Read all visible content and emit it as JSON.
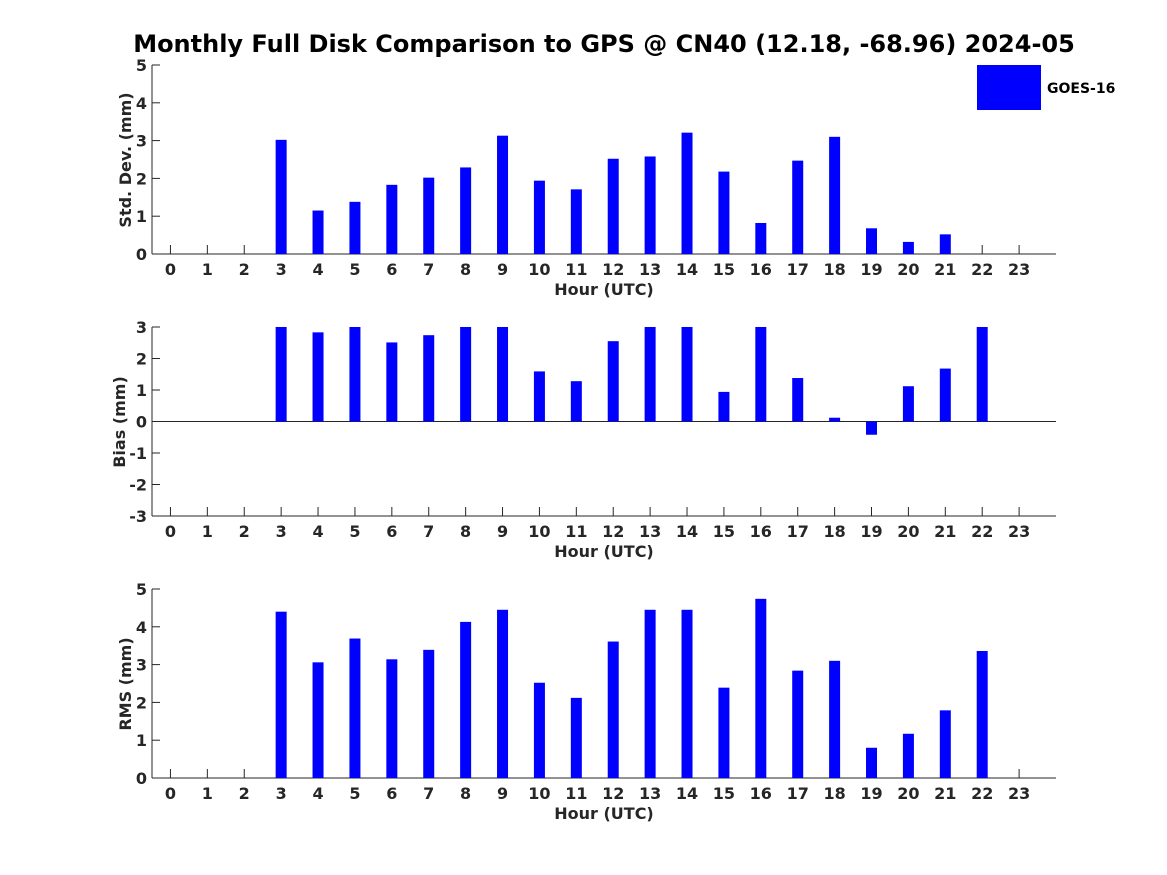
{
  "title": "Monthly Full Disk Comparison to GPS @ CN40 (12.18, -68.96) 2024-05",
  "colors": {
    "bar": "#0000ff",
    "axis": "#262626"
  },
  "legend": {
    "label": "GOES-16",
    "position": "top-right"
  },
  "chart_data": [
    {
      "type": "bar",
      "xlabel": "Hour (UTC)",
      "ylabel": "Std. Dev. (mm)",
      "ylim": [
        0,
        5
      ],
      "yticks": [
        0,
        1,
        2,
        3,
        4,
        5
      ],
      "categories": [
        "0",
        "1",
        "2",
        "3",
        "4",
        "5",
        "6",
        "7",
        "8",
        "9",
        "10",
        "11",
        "12",
        "13",
        "14",
        "15",
        "16",
        "17",
        "18",
        "19",
        "20",
        "21",
        "22",
        "23"
      ],
      "series": [
        {
          "name": "GOES-16",
          "values": [
            null,
            null,
            null,
            3.02,
            1.15,
            1.38,
            1.83,
            2.02,
            2.29,
            3.13,
            1.94,
            1.71,
            2.52,
            2.58,
            3.21,
            2.18,
            0.82,
            2.47,
            3.1,
            0.68,
            0.32,
            0.52,
            null,
            null
          ]
        }
      ],
      "legend": "top-right",
      "grid": false
    },
    {
      "type": "bar",
      "xlabel": "Hour (UTC)",
      "ylabel": "Bias (mm)",
      "ylim": [
        -3,
        3
      ],
      "yticks": [
        -3,
        -2,
        -1,
        0,
        1,
        2,
        3
      ],
      "categories": [
        "0",
        "1",
        "2",
        "3",
        "4",
        "5",
        "6",
        "7",
        "8",
        "9",
        "10",
        "11",
        "12",
        "13",
        "14",
        "15",
        "16",
        "17",
        "18",
        "19",
        "20",
        "21",
        "22",
        "23"
      ],
      "series": [
        {
          "name": "GOES-16",
          "values": [
            null,
            null,
            null,
            3.0,
            2.83,
            3.0,
            2.51,
            2.74,
            3.0,
            3.0,
            1.59,
            1.28,
            2.55,
            3.0,
            3.0,
            0.94,
            3.0,
            1.38,
            0.12,
            -0.42,
            1.12,
            1.68,
            3.0,
            null
          ]
        }
      ],
      "grid": false
    },
    {
      "type": "bar",
      "xlabel": "Hour (UTC)",
      "ylabel": "RMS (mm)",
      "ylim": [
        0,
        5
      ],
      "yticks": [
        0,
        1,
        2,
        3,
        4,
        5
      ],
      "categories": [
        "0",
        "1",
        "2",
        "3",
        "4",
        "5",
        "6",
        "7",
        "8",
        "9",
        "10",
        "11",
        "12",
        "13",
        "14",
        "15",
        "16",
        "17",
        "18",
        "19",
        "20",
        "21",
        "22",
        "23"
      ],
      "series": [
        {
          "name": "GOES-16",
          "values": [
            null,
            null,
            null,
            4.4,
            3.06,
            3.69,
            3.14,
            3.39,
            4.13,
            4.45,
            2.52,
            2.12,
            3.61,
            4.45,
            4.45,
            2.39,
            4.74,
            2.84,
            3.1,
            0.8,
            1.17,
            1.79,
            3.36,
            null
          ]
        }
      ],
      "grid": false
    }
  ]
}
